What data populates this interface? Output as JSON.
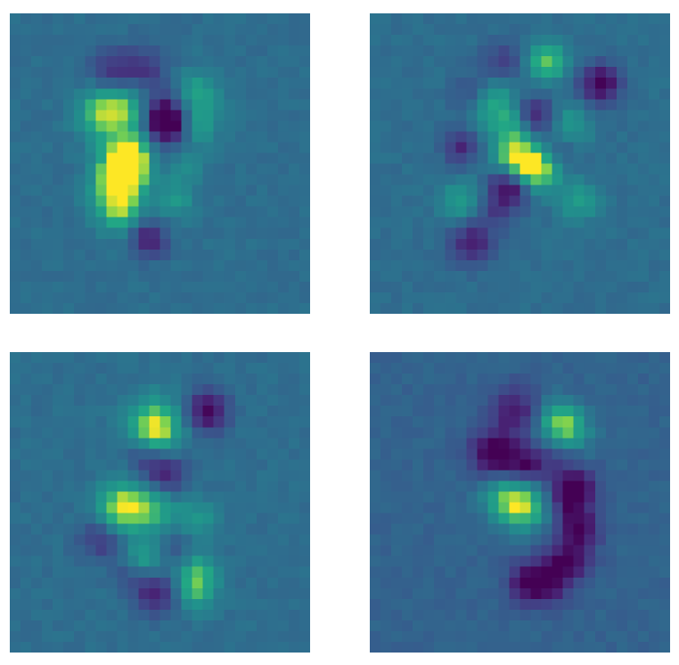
{
  "figure": {
    "colormap": "viridis",
    "panels": [
      {
        "name": "weight-map-1",
        "bg_level": 0.45
      },
      {
        "name": "weight-map-2",
        "bg_level": 0.45
      },
      {
        "name": "weight-map-3",
        "bg_level": 0.45
      },
      {
        "name": "weight-map-4",
        "bg_level": 0.4
      }
    ]
  }
}
